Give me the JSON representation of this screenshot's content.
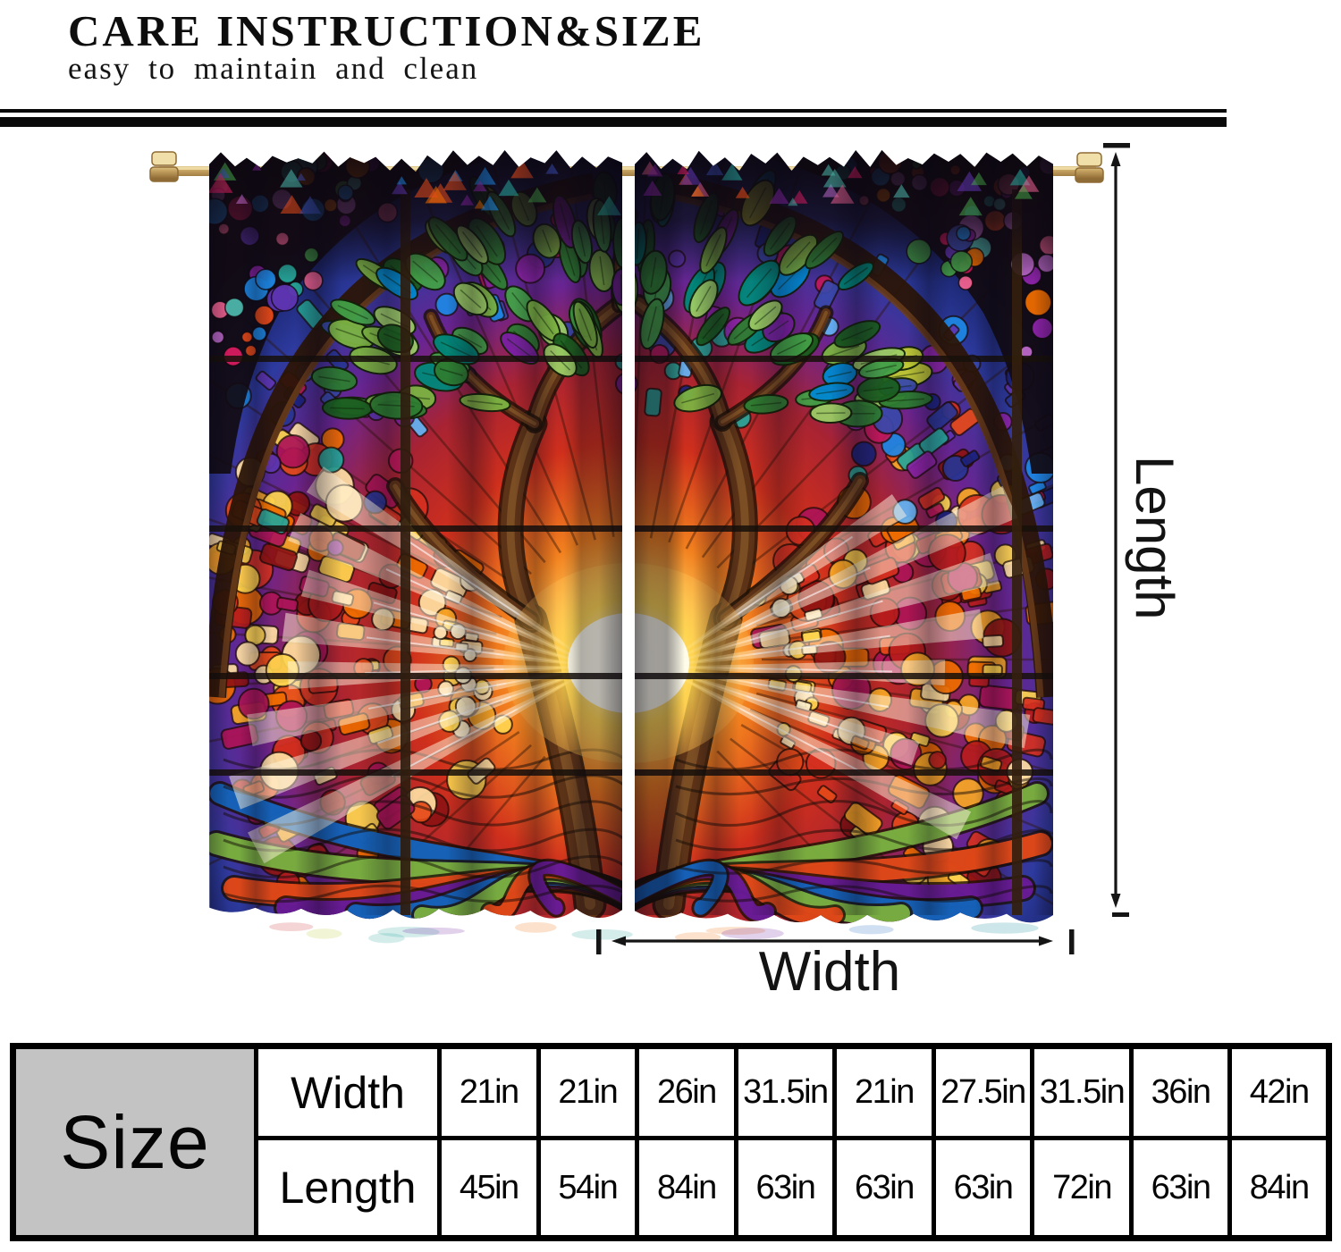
{
  "header": {
    "title": "CARE INSTRUCTION&SIZE",
    "subtitle": "easy to maintain and clean"
  },
  "diagram": {
    "length_label": "Length",
    "width_label": "Width"
  },
  "size_table": {
    "corner_label": "Size",
    "rows": [
      {
        "label": "Width",
        "values": [
          "21in",
          "21in",
          "26in",
          "31.5in",
          "21in",
          "27.5in",
          "31.5in",
          "36in",
          "42in"
        ]
      },
      {
        "label": "Length",
        "values": [
          "45in",
          "54in",
          "84in",
          "63in",
          "63in",
          "63in",
          "72in",
          "63in",
          "84in"
        ]
      }
    ]
  },
  "colors": {
    "text": "#0d0d0d",
    "rule": "#0a0a0a",
    "table_corner_bg": "#c3c3c3",
    "rod_gold": "#c9a664",
    "rod_gold_dark": "#8f6b35",
    "arch_dark": "#2b1507",
    "arch_mid": "#6b3d1b",
    "trunk": "#5d3317",
    "trunk_hi": "#8a5a2b",
    "outline": "#1d1006",
    "mullion": "#17100a",
    "glow_core": "#fffdf0",
    "glow_warm": "#ffd54f",
    "warm": [
      "#8e1313",
      "#b71c1c",
      "#d63020",
      "#e64a19",
      "#ef6c00",
      "#f9a825",
      "#ffd54f",
      "#ad1457",
      "#ffe0a3"
    ],
    "cool": [
      "#1a237e",
      "#283593",
      "#3949ab",
      "#1e88e5",
      "#26a69a",
      "#5e35b1",
      "#8e24aa",
      "#c2185b",
      "#64b5f6"
    ],
    "leaves": [
      "#1b5e20",
      "#2e7d32",
      "#43a047",
      "#7cb342",
      "#9ccc65",
      "#00897b",
      "#0288d1",
      "#3949ab",
      "#7b1fa2",
      "#c0ca33"
    ],
    "roots": [
      "#1565c0",
      "#26a69a",
      "#2e7d32",
      "#7cb342",
      "#c0ca33",
      "#ef6c00",
      "#e64a19",
      "#c62828",
      "#ad1457",
      "#6a1b9a",
      "#283593",
      "#00838f"
    ],
    "corner_dots": [
      "#d81b60",
      "#8e24aa",
      "#5e35b1",
      "#3949ab",
      "#1e88e5",
      "#26a69a",
      "#43a047",
      "#e64a19",
      "#f06292",
      "#ba68c8",
      "#4db6ac",
      "#ef6c00"
    ]
  }
}
